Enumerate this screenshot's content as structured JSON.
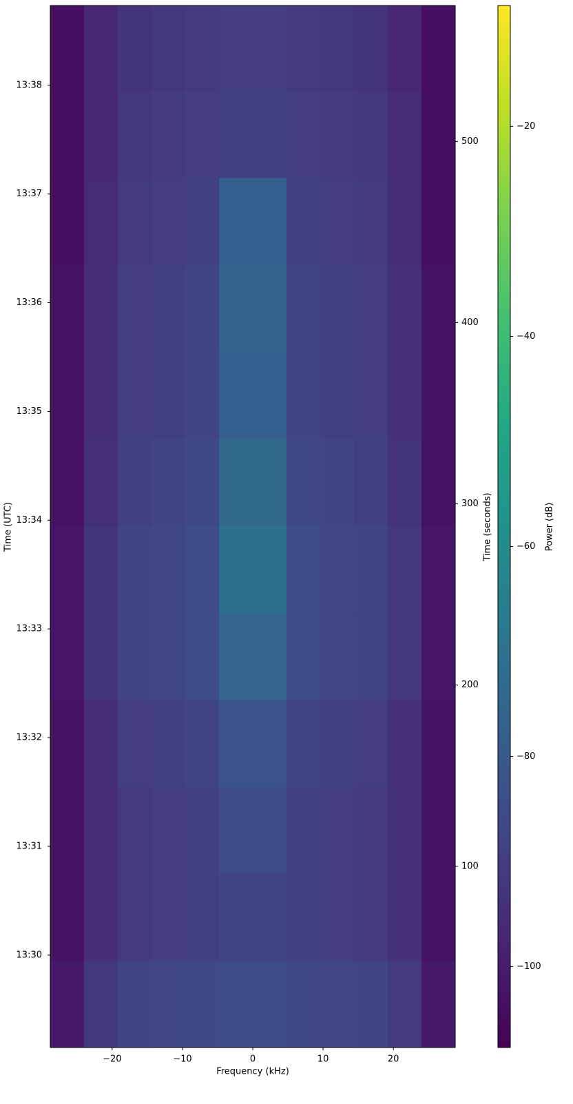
{
  "chart_data": {
    "type": "spectrogram",
    "xlabel": "Frequency (kHz)",
    "ylabel": "Time (UTC)",
    "y2label": "Time (seconds)",
    "colorbar_label": "Power (dB)",
    "colormap": "viridis",
    "xlim": [
      -28.8,
      28.8
    ],
    "xticks": [
      {
        "value": -20,
        "label": "−20"
      },
      {
        "value": -10,
        "label": "−10"
      },
      0,
      10,
      20
    ],
    "ylim": [
      0,
      575
    ],
    "yticks": [
      {
        "value": 51,
        "label": "13:30"
      },
      {
        "value": 111,
        "label": "13:31"
      },
      {
        "value": 171,
        "label": "13:32"
      },
      {
        "value": 231,
        "label": "13:33"
      },
      {
        "value": 291,
        "label": "13:34"
      },
      {
        "value": 351,
        "label": "13:35"
      },
      {
        "value": 411,
        "label": "13:36"
      },
      {
        "value": 471,
        "label": "13:37"
      },
      {
        "value": 531,
        "label": "13:38"
      }
    ],
    "y2lim": [
      0,
      575
    ],
    "y2ticks": [
      100,
      200,
      300,
      400,
      500
    ],
    "zlim": [
      -107.7,
      -8.5
    ],
    "zticks": [
      {
        "value": -100,
        "label": "−100"
      },
      {
        "value": -80,
        "label": "−80"
      },
      {
        "value": -60,
        "label": "−60"
      },
      {
        "value": -40,
        "label": "−40"
      },
      {
        "value": -20,
        "label": "−20"
      }
    ],
    "freq_edges": [
      -28.8,
      -24,
      -19.2,
      -14.4,
      -9.6,
      -4.8,
      0,
      4.8,
      9.6,
      14.4,
      19.2,
      24,
      28.8
    ],
    "time_edges": [
      0,
      48,
      96,
      144,
      192,
      240,
      288,
      336,
      384,
      432,
      480,
      528,
      575
    ],
    "power": [
      [
        -101,
        -92,
        -88,
        -87,
        -86,
        -85,
        -85,
        -86,
        -87,
        -88,
        -91,
        -101
      ],
      [
        -103,
        -95,
        -91,
        -90,
        -89,
        -88,
        -88,
        -89,
        -90,
        -91,
        -94,
        -103
      ],
      [
        -103,
        -95,
        -91,
        -90,
        -89,
        -85,
        -85,
        -89,
        -90,
        -91,
        -94,
        -103
      ],
      [
        -103,
        -95,
        -90,
        -89,
        -88,
        -82,
        -82,
        -88,
        -89,
        -90,
        -94,
        -103
      ],
      [
        -102,
        -93,
        -88,
        -87,
        -85,
        -75,
        -75,
        -85,
        -87,
        -88,
        -92,
        -102
      ],
      [
        -102,
        -93,
        -88,
        -87,
        -85,
        -72,
        -72,
        -85,
        -87,
        -88,
        -92,
        -102
      ],
      [
        -103,
        -94,
        -89,
        -88,
        -86,
        -74,
        -74,
        -86,
        -88,
        -89,
        -93,
        -103
      ],
      [
        -103,
        -95,
        -90,
        -89,
        -88,
        -78,
        -78,
        -88,
        -89,
        -90,
        -94,
        -103
      ],
      [
        -103,
        -95,
        -90,
        -89,
        -88,
        -76,
        -76,
        -88,
        -89,
        -90,
        -94,
        -103
      ],
      [
        -104,
        -96,
        -91,
        -90,
        -89,
        -78,
        -78,
        -89,
        -90,
        -91,
        -95,
        -104
      ],
      [
        -104,
        -97,
        -92,
        -91,
        -90,
        -89,
        -89,
        -90,
        -91,
        -92,
        -96,
        -104
      ],
      [
        -104,
        -97,
        -93,
        -92,
        -91,
        -90,
        -90,
        -91,
        -92,
        -93,
        -97,
        -104
      ]
    ]
  }
}
